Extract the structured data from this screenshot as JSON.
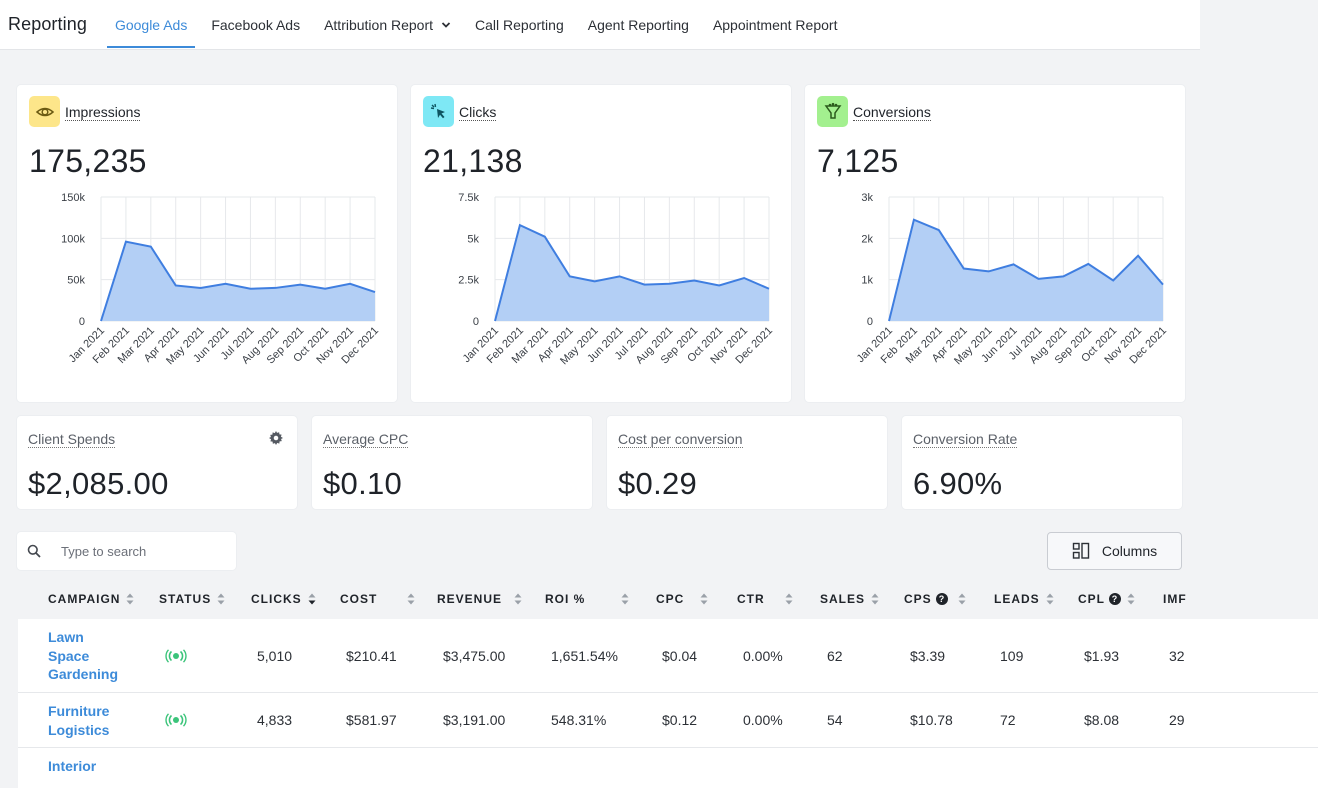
{
  "nav": {
    "brand": "Reporting",
    "tabs": [
      {
        "label": "Google Ads",
        "active": true
      },
      {
        "label": "Facebook Ads"
      },
      {
        "label": "Attribution Report",
        "dropdown": true
      },
      {
        "label": "Call Reporting"
      },
      {
        "label": "Agent Reporting"
      },
      {
        "label": "Appointment Report"
      }
    ]
  },
  "metrics": [
    {
      "label": "Impressions",
      "value": "175,235",
      "icon": "eye-icon",
      "icon_bg": "#fde68a",
      "icon_color": "#6b5a12"
    },
    {
      "label": "Clicks",
      "value": "21,138",
      "icon": "cursor-click-icon",
      "icon_bg": "#7ee8f5",
      "icon_color": "#0e5561"
    },
    {
      "label": "Conversions",
      "value": "7,125",
      "icon": "funnel-icon",
      "icon_bg": "#a3f08f",
      "icon_color": "#2b5a1c"
    }
  ],
  "chart_data": [
    {
      "type": "area",
      "categories": [
        "Jan 2021",
        "Feb 2021",
        "Mar 2021",
        "Apr 2021",
        "May 2021",
        "Jun 2021",
        "Jul 2021",
        "Aug 2021",
        "Sep 2021",
        "Oct 2021",
        "Nov 2021",
        "Dec 2021"
      ],
      "values": [
        0,
        96000,
        90000,
        43000,
        40000,
        45000,
        39000,
        40000,
        44000,
        39000,
        45000,
        35000
      ],
      "yticks": [
        "0",
        "50k",
        "100k",
        "150k"
      ],
      "ylim": [
        0,
        150000
      ],
      "grid": true,
      "fill": "#b3cff5",
      "stroke": "#3f7ee0"
    },
    {
      "type": "area",
      "categories": [
        "Jan 2021",
        "Feb 2021",
        "Mar 2021",
        "Apr 2021",
        "May 2021",
        "Jun 2021",
        "Jul 2021",
        "Aug 2021",
        "Sep 2021",
        "Oct 2021",
        "Nov 2021",
        "Dec 2021"
      ],
      "values": [
        0,
        5800,
        5100,
        2700,
        2400,
        2700,
        2200,
        2250,
        2450,
        2150,
        2600,
        1950
      ],
      "yticks": [
        "0",
        "2.5k",
        "5k",
        "7.5k"
      ],
      "ylim": [
        0,
        7500
      ],
      "grid": true,
      "fill": "#b3cff5",
      "stroke": "#3f7ee0"
    },
    {
      "type": "area",
      "categories": [
        "Jan 2021",
        "Feb 2021",
        "Mar 2021",
        "Apr 2021",
        "May 2021",
        "Jun 2021",
        "Jul 2021",
        "Aug 2021",
        "Sep 2021",
        "Oct 2021",
        "Nov 2021",
        "Dec 2021"
      ],
      "values": [
        0,
        2450,
        2200,
        1270,
        1200,
        1370,
        1020,
        1080,
        1380,
        980,
        1580,
        880
      ],
      "yticks": [
        "0",
        "1k",
        "2k",
        "3k"
      ],
      "ylim": [
        0,
        3000
      ],
      "grid": true,
      "fill": "#b3cff5",
      "stroke": "#3f7ee0"
    }
  ],
  "stats": [
    {
      "label": "Client Spends",
      "value": "$2,085.00",
      "has_settings": true
    },
    {
      "label": "Average CPC",
      "value": "$0.10"
    },
    {
      "label": "Cost per conversion",
      "value": "$0.29"
    },
    {
      "label": "Conversion Rate",
      "value": "6.90%"
    }
  ],
  "search": {
    "placeholder": "Type to search"
  },
  "columns_button": {
    "label": "Columns"
  },
  "table": {
    "headers": [
      "CAMPAIGN",
      "STATUS",
      "CLICKS",
      "COST",
      "REVENUE",
      "ROI %",
      "CPC",
      "CTR",
      "SALES",
      "CPS",
      "LEADS",
      "CPL",
      "IMF"
    ],
    "rows": [
      {
        "campaign": "Lawn Space Gardening",
        "cells": [
          "5,010",
          "$210.41",
          "$3,475.00",
          "1,651.54%",
          "$0.04",
          "0.00%",
          "62",
          "$3.39",
          "109",
          "$1.93",
          "32"
        ]
      },
      {
        "campaign": "Furniture Logistics",
        "cells": [
          "4,833",
          "$581.97",
          "$3,191.00",
          "548.31%",
          "$0.12",
          "0.00%",
          "54",
          "$10.78",
          "72",
          "$8.08",
          "29"
        ]
      },
      {
        "campaign": "Interior",
        "cells": []
      }
    ],
    "status_color": "#3bc47a",
    "link_color": "#3d8bd9"
  }
}
